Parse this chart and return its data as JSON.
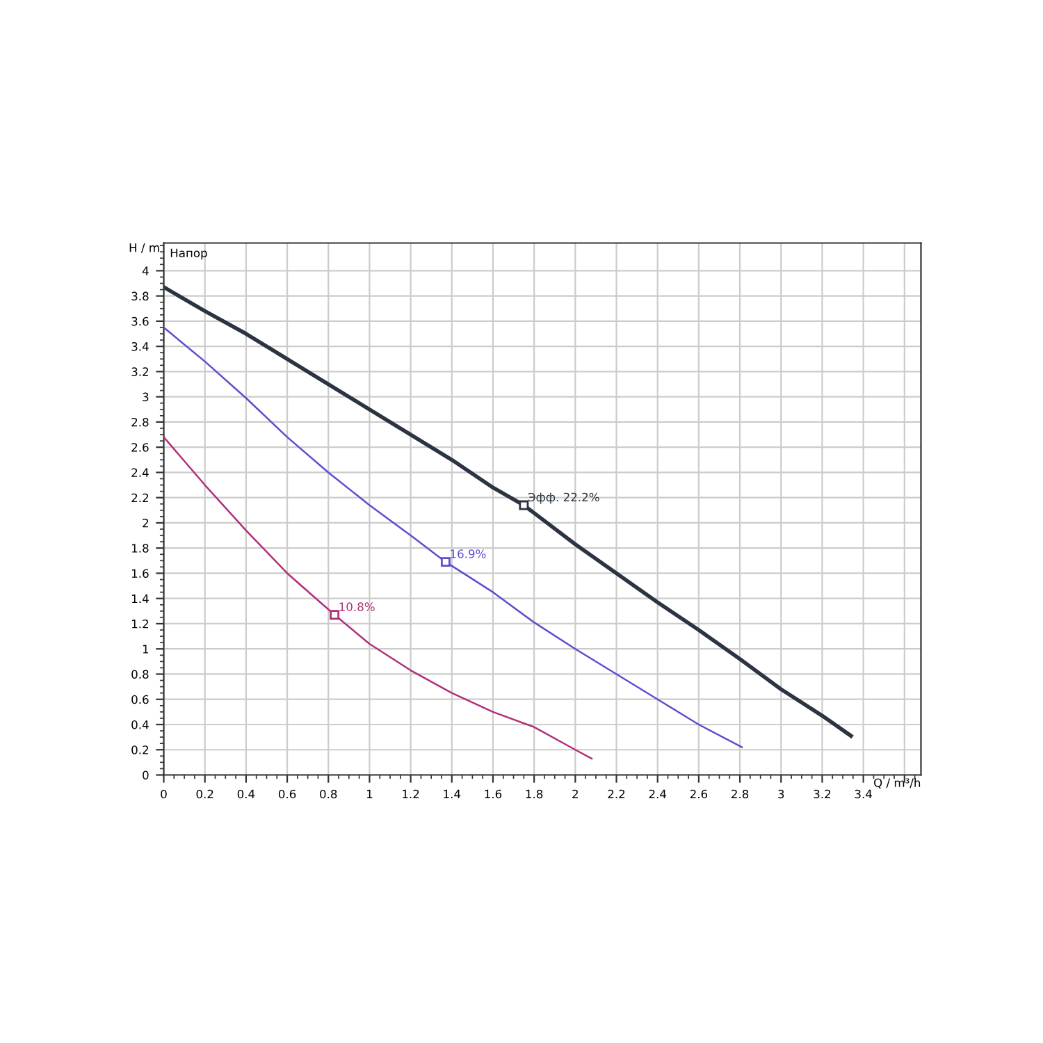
{
  "chart_data": {
    "type": "line",
    "xlabel": "Q / m³/h",
    "ylabel": "H / m",
    "annotations": [
      "Напор",
      {
        "text": "Эфф. 22.2%",
        "x": 1.75,
        "y": 2.14
      },
      {
        "text": "16.9%",
        "x": 1.37,
        "y": 1.69
      },
      {
        "text": "10.8%",
        "x": 0.83,
        "y": 1.27
      }
    ],
    "series": [
      {
        "color": "#2b3440",
        "x": [
          0,
          0.2,
          0.4,
          0.6,
          0.8,
          1.0,
          1.2,
          1.4,
          1.6,
          1.75,
          2.0,
          2.2,
          2.4,
          2.6,
          2.8,
          3.0,
          3.2,
          3.34
        ],
        "values": [
          3.87,
          3.68,
          3.5,
          3.3,
          3.1,
          2.9,
          2.7,
          2.5,
          2.28,
          2.14,
          1.83,
          1.6,
          1.37,
          1.15,
          0.92,
          0.68,
          0.47,
          0.31
        ]
      },
      {
        "color": "#5a4fcf",
        "x": [
          0,
          0.2,
          0.4,
          0.6,
          0.8,
          1.0,
          1.2,
          1.37,
          1.6,
          1.8,
          2.0,
          2.2,
          2.4,
          2.6,
          2.81
        ],
        "values": [
          3.55,
          3.28,
          2.99,
          2.68,
          2.4,
          2.14,
          1.9,
          1.69,
          1.45,
          1.21,
          1.0,
          0.8,
          0.6,
          0.4,
          0.22
        ]
      },
      {
        "color": "#b0307a",
        "x": [
          0,
          0.2,
          0.4,
          0.6,
          0.83,
          1.0,
          1.2,
          1.4,
          1.6,
          1.8,
          2.0,
          2.08
        ],
        "values": [
          2.68,
          2.3,
          1.94,
          1.6,
          1.27,
          1.04,
          0.83,
          0.65,
          0.5,
          0.38,
          0.2,
          0.13
        ]
      }
    ],
    "xlim": [
      0,
      3.68
    ],
    "ylim": [
      0,
      4.22
    ],
    "xticks": [
      0,
      0.2,
      0.4,
      0.6,
      0.8,
      1,
      1.2,
      1.4,
      1.6,
      1.8,
      2,
      2.2,
      2.4,
      2.6,
      2.8,
      3,
      3.2,
      3.4,
      {
        "value": 3.6,
        "label": null
      }
    ],
    "yticks": [
      0,
      0.2,
      0.4,
      0.6,
      0.8,
      1,
      1.2,
      1.4,
      1.6,
      1.8,
      2,
      2.2,
      2.4,
      2.6,
      2.8,
      3,
      3.2,
      3.4,
      3.6,
      3.8,
      4
    ],
    "grid": true,
    "marker": "none",
    "line_style": "solid"
  }
}
